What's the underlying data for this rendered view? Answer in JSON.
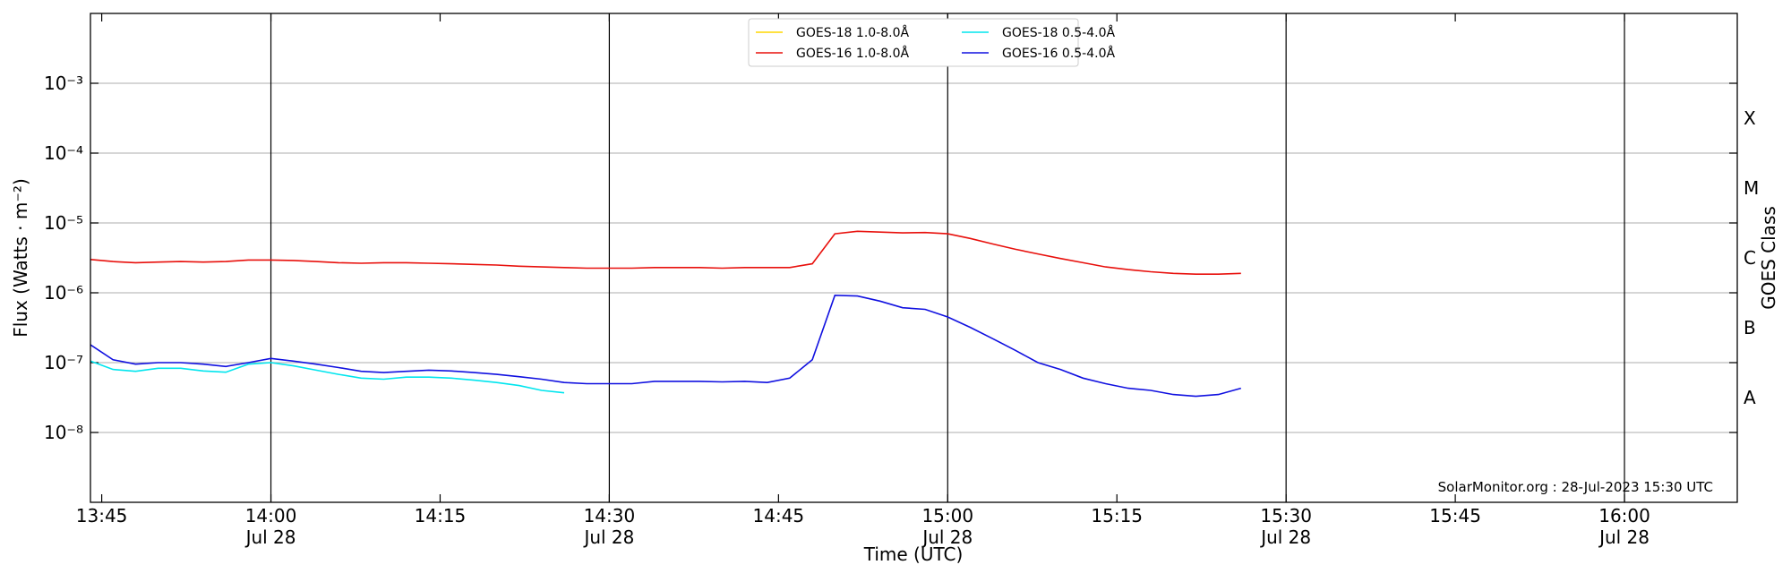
{
  "chart_data": {
    "type": "line",
    "xlabel": "Time (UTC)",
    "ylabel": "Flux (Watts · m⁻²)",
    "y2label": "GOES Class",
    "annotation": "SolarMonitor.org : 28-Jul-2023 15:30 UTC",
    "log_y": true,
    "grid": true,
    "date_tick_lines": true,
    "legend_position": "top",
    "xlim": [
      "13:44",
      "16:10"
    ],
    "xticks": [
      {
        "value": "13:45",
        "label": "13:45"
      },
      {
        "value": "14:00",
        "label": "14:00",
        "date": "Jul 28"
      },
      {
        "value": "14:15",
        "label": "14:15"
      },
      {
        "value": "14:30",
        "label": "14:30",
        "date": "Jul 28"
      },
      {
        "value": "14:45",
        "label": "14:45"
      },
      {
        "value": "15:00",
        "label": "15:00",
        "date": "Jul 28"
      },
      {
        "value": "15:15",
        "label": "15:15"
      },
      {
        "value": "15:30",
        "label": "15:30",
        "date": "Jul 28"
      },
      {
        "value": "15:45",
        "label": "15:45"
      },
      {
        "value": "16:00",
        "label": "16:00",
        "date": "Jul 28"
      }
    ],
    "ylim": [
      1e-09,
      0.01
    ],
    "yticks": [
      {
        "value": 1e-08,
        "label": "10⁻⁸"
      },
      {
        "value": 1e-07,
        "label": "10⁻⁷"
      },
      {
        "value": 1e-06,
        "label": "10⁻⁶"
      },
      {
        "value": 1e-05,
        "label": "10⁻⁵"
      },
      {
        "value": 0.0001,
        "label": "10⁻⁴"
      },
      {
        "value": 0.001,
        "label": "10⁻³"
      }
    ],
    "goes_classes": [
      {
        "value": 3.162e-08,
        "label": "A"
      },
      {
        "value": 3.162e-07,
        "label": "B"
      },
      {
        "value": 3.162e-06,
        "label": "C"
      },
      {
        "value": 3.162e-05,
        "label": "M"
      },
      {
        "value": 0.0003162,
        "label": "X"
      }
    ],
    "x": [
      "13:44",
      "13:46",
      "13:48",
      "13:50",
      "13:52",
      "13:54",
      "13:56",
      "13:58",
      "14:00",
      "14:02",
      "14:04",
      "14:06",
      "14:08",
      "14:10",
      "14:12",
      "14:14",
      "14:16",
      "14:18",
      "14:20",
      "14:22",
      "14:24",
      "14:26",
      "14:28",
      "14:30",
      "14:32",
      "14:34",
      "14:36",
      "14:38",
      "14:40",
      "14:42",
      "14:44",
      "14:46",
      "14:48",
      "14:50",
      "14:52",
      "14:54",
      "14:56",
      "14:58",
      "15:00",
      "15:02",
      "15:04",
      "15:06",
      "15:08",
      "15:10",
      "15:12",
      "15:14",
      "15:16",
      "15:18",
      "15:20",
      "15:22",
      "15:24",
      "15:26"
    ],
    "series": [
      {
        "name": "GOES-18 1.0-8.0Å",
        "color": "#ffd700",
        "values": [
          null,
          null,
          null,
          null,
          null,
          null,
          null,
          null,
          null,
          null,
          null,
          null,
          null,
          null,
          null,
          null,
          null,
          null,
          null,
          null,
          null,
          null,
          null,
          null,
          null,
          null,
          null,
          null,
          null,
          null,
          null,
          null,
          null,
          null,
          null,
          null,
          null,
          null,
          null,
          null,
          null,
          null,
          null,
          null,
          null,
          null,
          null,
          null,
          null,
          null,
          null,
          null
        ]
      },
      {
        "name": "GOES-16 1.0-8.0Å",
        "color": "#e8100c",
        "values": [
          3e-06,
          2.8e-06,
          2.7e-06,
          2.75e-06,
          2.8e-06,
          2.75e-06,
          2.8e-06,
          2.95e-06,
          2.95e-06,
          2.9e-06,
          2.8e-06,
          2.7e-06,
          2.65e-06,
          2.7e-06,
          2.7e-06,
          2.65e-06,
          2.6e-06,
          2.55e-06,
          2.5e-06,
          2.4e-06,
          2.35e-06,
          2.3e-06,
          2.25e-06,
          2.25e-06,
          2.25e-06,
          2.3e-06,
          2.3e-06,
          2.3e-06,
          2.25e-06,
          2.3e-06,
          2.3e-06,
          2.3e-06,
          2.6e-06,
          7e-06,
          7.6e-06,
          7.4e-06,
          7.2e-06,
          7.3e-06,
          7e-06,
          6e-06,
          5e-06,
          4.2e-06,
          3.6e-06,
          3.1e-06,
          2.7e-06,
          2.35e-06,
          2.15e-06,
          2e-06,
          1.9e-06,
          1.85e-06,
          1.85e-06,
          1.9e-06
        ]
      },
      {
        "name": "GOES-18 0.5-4.0Å",
        "color": "#00e5ee",
        "values": [
          1.05e-07,
          8e-08,
          7.5e-08,
          8.3e-08,
          8.3e-08,
          7.6e-08,
          7.3e-08,
          9.5e-08,
          1e-07,
          9e-08,
          7.8e-08,
          6.8e-08,
          6e-08,
          5.8e-08,
          6.2e-08,
          6.2e-08,
          6e-08,
          5.6e-08,
          5.2e-08,
          4.7e-08,
          4e-08,
          3.7e-08,
          null,
          null,
          null,
          null,
          null,
          null,
          null,
          null,
          null,
          null,
          null,
          null,
          null,
          null,
          null,
          null,
          null,
          null,
          null,
          null,
          null,
          null,
          null,
          null,
          null,
          null,
          null,
          null,
          null,
          null
        ]
      },
      {
        "name": "GOES-16 0.5-4.0Å",
        "color": "#1010e0",
        "values": [
          1.8e-07,
          1.1e-07,
          9.5e-08,
          1e-07,
          1e-07,
          9.5e-08,
          8.8e-08,
          1e-07,
          1.15e-07,
          1.05e-07,
          9.5e-08,
          8.5e-08,
          7.5e-08,
          7.2e-08,
          7.5e-08,
          7.8e-08,
          7.6e-08,
          7.2e-08,
          6.8e-08,
          6.3e-08,
          5.8e-08,
          5.2e-08,
          5e-08,
          5e-08,
          5e-08,
          5.4e-08,
          5.4e-08,
          5.4e-08,
          5.3e-08,
          5.4e-08,
          5.2e-08,
          6e-08,
          1.1e-07,
          9.2e-07,
          9e-07,
          7.6e-07,
          6.1e-07,
          5.8e-07,
          4.5e-07,
          3.2e-07,
          2.2e-07,
          1.5e-07,
          1e-07,
          8e-08,
          6e-08,
          5e-08,
          4.3e-08,
          4e-08,
          3.5e-08,
          3.3e-08,
          3.5e-08,
          4.3e-08
        ]
      }
    ]
  }
}
